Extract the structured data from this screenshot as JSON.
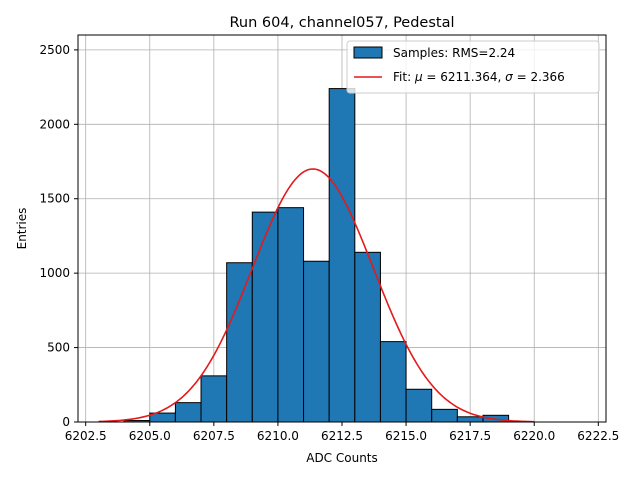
{
  "chart_data": {
    "type": "histogram",
    "title": "Run 604, channel057, Pedestal",
    "xlabel": "ADC Counts",
    "ylabel": "Entries",
    "xlim": [
      6202.2,
      6222.8
    ],
    "ylim": [
      0,
      2600
    ],
    "xticks": [
      6202.5,
      6205.0,
      6207.5,
      6210.0,
      6212.5,
      6215.0,
      6217.5,
      6220.0,
      6222.5
    ],
    "xtick_labels": [
      "6202.5",
      "6205.0",
      "6207.5",
      "6210.0",
      "6212.5",
      "6215.0",
      "6217.5",
      "6220.0",
      "6222.5"
    ],
    "yticks": [
      0,
      500,
      1000,
      1500,
      2000,
      2500
    ],
    "ytick_labels": [
      "0",
      "500",
      "1000",
      "1500",
      "2000",
      "2500"
    ],
    "grid": true,
    "bins": [
      {
        "x0": 6204.0,
        "x1": 6205.0,
        "count": 10
      },
      {
        "x0": 6205.0,
        "x1": 6206.0,
        "count": 60
      },
      {
        "x0": 6206.0,
        "x1": 6207.0,
        "count": 130
      },
      {
        "x0": 6207.0,
        "x1": 6208.0,
        "count": 310
      },
      {
        "x0": 6208.0,
        "x1": 6209.0,
        "count": 1070
      },
      {
        "x0": 6209.0,
        "x1": 6210.0,
        "count": 1410
      },
      {
        "x0": 6210.0,
        "x1": 6211.0,
        "count": 1440
      },
      {
        "x0": 6211.0,
        "x1": 6212.0,
        "count": 1080
      },
      {
        "x0": 6212.0,
        "x1": 6213.0,
        "count": 2240
      },
      {
        "x0": 6213.0,
        "x1": 6214.0,
        "count": 1140
      },
      {
        "x0": 6214.0,
        "x1": 6215.0,
        "count": 540
      },
      {
        "x0": 6215.0,
        "x1": 6216.0,
        "count": 220
      },
      {
        "x0": 6216.0,
        "x1": 6217.0,
        "count": 85
      },
      {
        "x0": 6217.0,
        "x1": 6218.0,
        "count": 35
      },
      {
        "x0": 6218.0,
        "x1": 6219.0,
        "count": 45
      }
    ],
    "fit": {
      "mu": 6211.364,
      "sigma": 2.366,
      "amplitude": 1700,
      "x_range": [
        6203,
        6220
      ]
    },
    "legend": {
      "position": "top-right",
      "entries": [
        {
          "kind": "bar",
          "prefix": "Samples: RMS=2.24"
        },
        {
          "kind": "line",
          "prefix": "Fit: ",
          "mu_symbol": "μ",
          "mu_text": " = 6211.364, ",
          "sigma_symbol": "σ",
          "sigma_text": " = 2.366"
        }
      ]
    },
    "colors": {
      "bar_fill": "#1f77b4",
      "bar_edge": "#000000",
      "fit_line": "#e41a1c",
      "grid": "#b0b0b0"
    }
  }
}
